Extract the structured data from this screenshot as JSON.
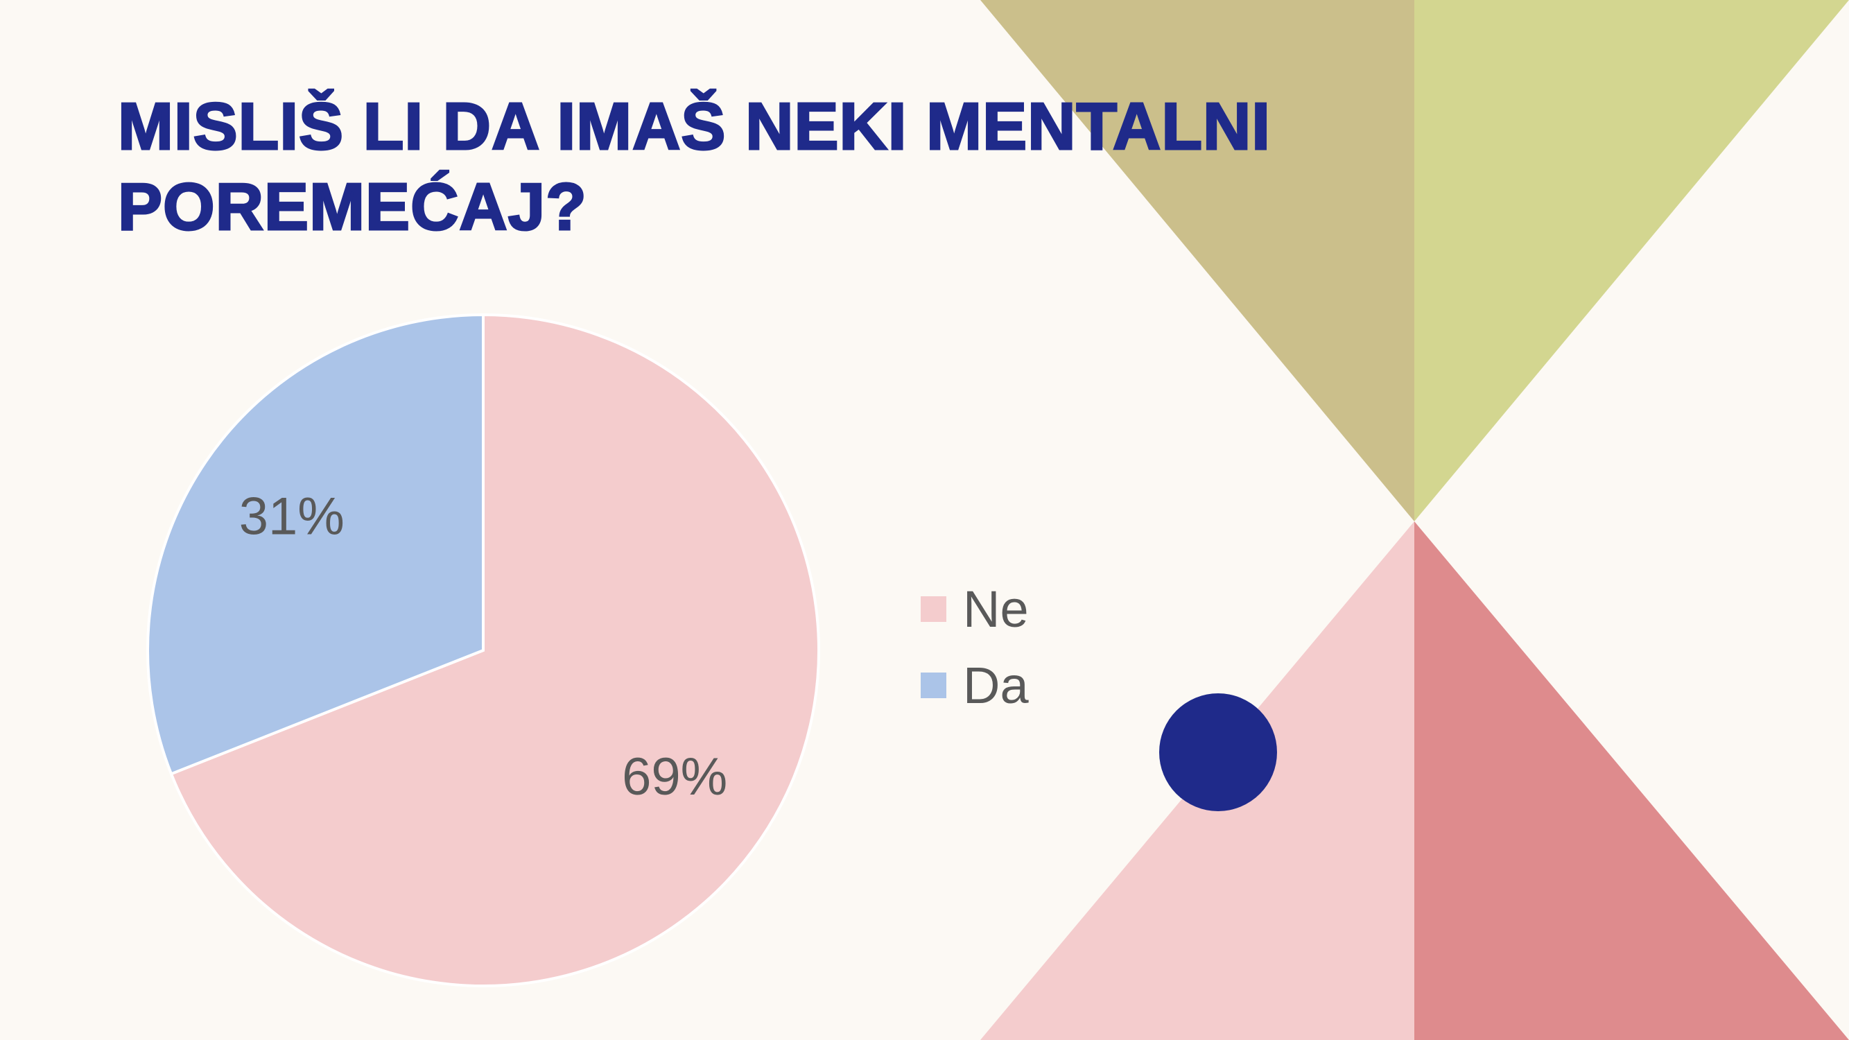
{
  "slide": {
    "title": "MISLIŠ LI DA IMAŠ NEKI MENTALNI POREMEĆAJ?"
  },
  "decoration": {
    "colors": {
      "olive": "#cbbf8b",
      "lime": "#d3d690",
      "pink": "#f4cccd",
      "rose": "#de8b8d",
      "navy_dot": "#1f2a8a"
    }
  },
  "chart_data": {
    "type": "pie",
    "categories": [
      "Ne",
      "Da"
    ],
    "values": [
      69,
      31
    ],
    "data_labels": [
      "69%",
      "31%"
    ],
    "colors": [
      "#f4cccd",
      "#abc4e8"
    ],
    "legend_position": "right"
  }
}
